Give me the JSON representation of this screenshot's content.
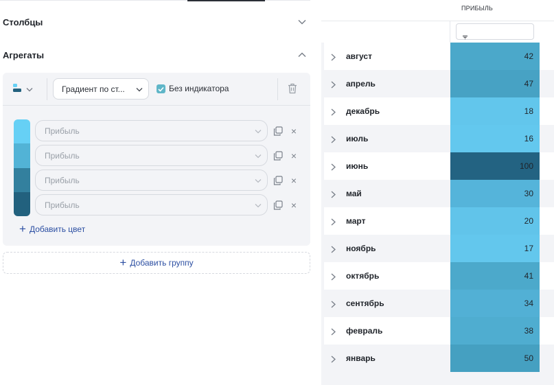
{
  "sections": {
    "columns_title": "Столбцы",
    "aggregates_title": "Агрегаты"
  },
  "toolbar": {
    "viz_icon": "column-viz-icon",
    "gradient_dropdown": "Градиент по ст...",
    "no_indicator_label": "Без индикатора",
    "no_indicator_checked": true
  },
  "gradient": {
    "colors": [
      "#66d0f5",
      "#52b3d6",
      "#33809e",
      "#22617e"
    ],
    "metrics": [
      {
        "placeholder": "Прибыль"
      },
      {
        "placeholder": "Прибыль"
      },
      {
        "placeholder": "Прибыль"
      },
      {
        "placeholder": "Прибыль"
      }
    ],
    "add_color_label": "Добавить цвет"
  },
  "add_group_label": "Добавить группу",
  "table": {
    "column_header": "ПРИБЫЛЬ",
    "rows": [
      {
        "label": "август",
        "value": "42",
        "color": "#4ba8ca"
      },
      {
        "label": "апрель",
        "value": "47",
        "color": "#47a2c4"
      },
      {
        "label": "декабрь",
        "value": "18",
        "color": "#62c6ec"
      },
      {
        "label": "июль",
        "value": "16",
        "color": "#63c8ee"
      },
      {
        "label": "июнь",
        "value": "100",
        "color": "#236382"
      },
      {
        "label": "май",
        "value": "30",
        "color": "#55b4da"
      },
      {
        "label": "март",
        "value": "20",
        "color": "#61c4ea"
      },
      {
        "label": "ноябрь",
        "value": "17",
        "color": "#63c7ed"
      },
      {
        "label": "октябрь",
        "value": "41",
        "color": "#4ca9cb"
      },
      {
        "label": "сентябрь",
        "value": "34",
        "color": "#52b0d5"
      },
      {
        "label": "февраль",
        "value": "38",
        "color": "#4fadd0"
      },
      {
        "label": "январь",
        "value": "50",
        "color": "#45a0c1"
      }
    ]
  }
}
